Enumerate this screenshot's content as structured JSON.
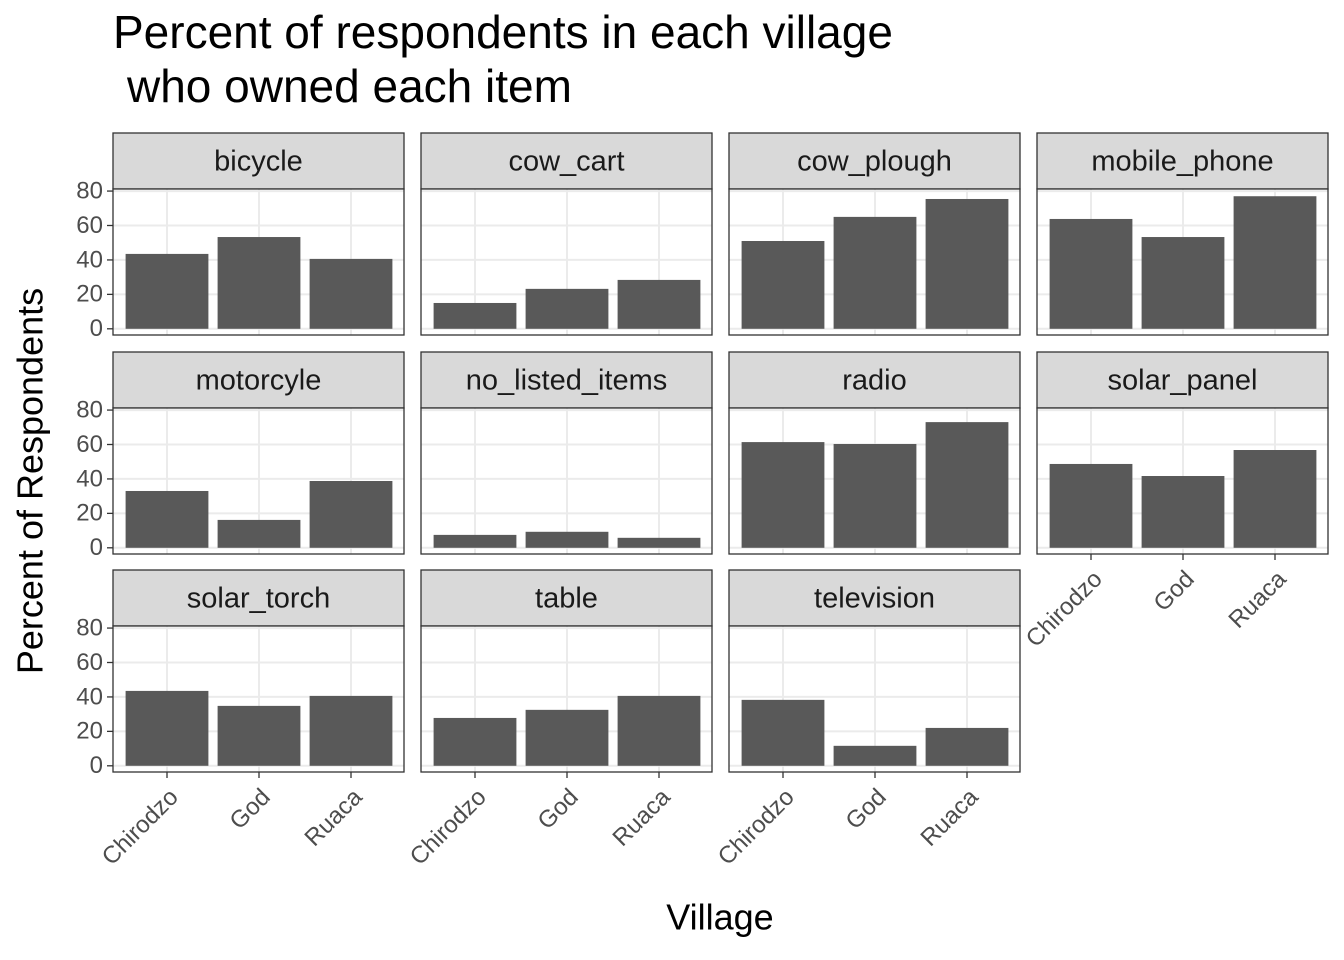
{
  "chart_data": {
    "type": "bar",
    "title": [
      "Percent of respondents in each village",
      "who owned each item"
    ],
    "xlabel": "Village",
    "ylabel": "Percent of Respondents",
    "categories": [
      "Chirodzo",
      "God",
      "Ruaca"
    ],
    "color": "#595959",
    "ylim": [
      -3.6,
      81.2
    ],
    "yticks": [
      0,
      20,
      40,
      60,
      80
    ],
    "grid": true,
    "facets": [
      {
        "name": "bicycle",
        "values": [
          43.5,
          53.3,
          40.6
        ]
      },
      {
        "name": "cow_cart",
        "values": [
          15,
          23.2,
          28.4
        ]
      },
      {
        "name": "cow_plough",
        "values": [
          51,
          65,
          75.4
        ]
      },
      {
        "name": "mobile_phone",
        "values": [
          63.8,
          53.3,
          77
        ]
      },
      {
        "name": "motorcyle",
        "values": [
          33,
          16.2,
          38.8
        ]
      },
      {
        "name": "no_listed_items",
        "values": [
          7.5,
          9.3,
          5.8
        ]
      },
      {
        "name": "radio",
        "values": [
          61.4,
          60.3,
          73
        ]
      },
      {
        "name": "solar_panel",
        "values": [
          48.7,
          41.7,
          56.8
        ]
      },
      {
        "name": "solar_torch",
        "values": [
          43.5,
          34.8,
          40.6
        ]
      },
      {
        "name": "table",
        "values": [
          27.8,
          32.5,
          40.6
        ]
      },
      {
        "name": "television",
        "values": [
          38.3,
          11.6,
          22
        ]
      }
    ]
  }
}
